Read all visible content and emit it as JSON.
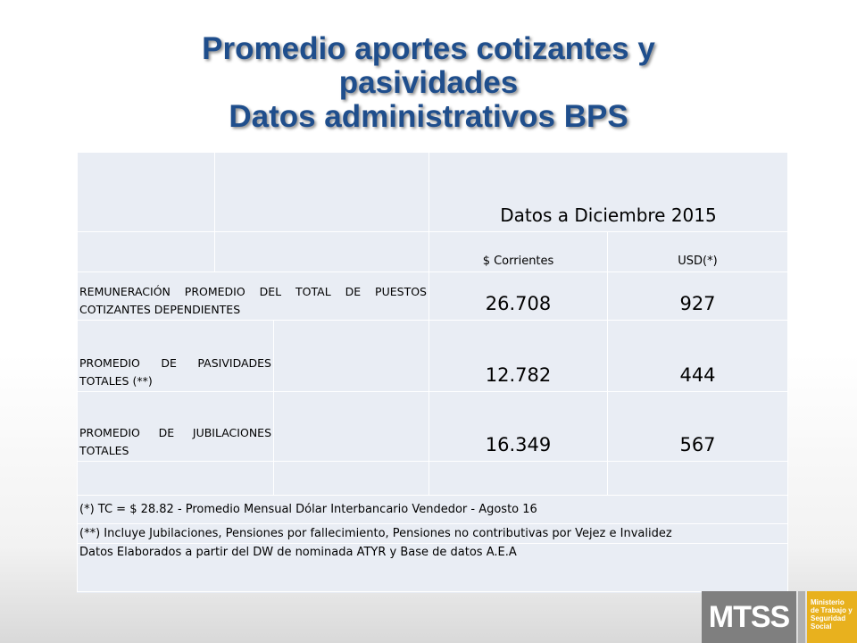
{
  "title": {
    "line1": "Promedio aportes cotizantes y",
    "line2": "pasividades",
    "line3": "Datos administrativos BPS"
  },
  "table": {
    "period_header": "Datos a Diciembre 2015",
    "col_corrientes": "$ Corrientes",
    "col_usd": "USD(*)",
    "rows": [
      {
        "label": "REMUNERACIÓN PROMEDIO DEL TOTAL DE PUESTOS COTIZANTES DEPENDIENTES",
        "corrientes": "26.708",
        "usd": "927"
      },
      {
        "label": "PROMEDIO DE PASIVIDADES TOTALES (**)",
        "corrientes": "12.782",
        "usd": "444"
      },
      {
        "label": "PROMEDIO DE JUBILACIONES TOTALES",
        "corrientes": "16.349",
        "usd": "567"
      }
    ],
    "notes": [
      "(*) TC = $ 28.82 - Promedio Mensual Dólar Interbancario Vendedor - Agosto 16",
      "(**) Incluye Jubilaciones, Pensiones por fallecimiento, Pensiones no contributivas por  Vejez e Invalidez",
      "Datos Elaborados a partir del DW de nominada ATYR y Base de datos A.E.A"
    ]
  },
  "logo": {
    "acronym": "MTSS",
    "line1": "Ministerio",
    "line2": "de Trabajo y",
    "line3": "Seguridad",
    "line4": "Social"
  },
  "colors": {
    "title": "#1f4e8c",
    "table_bg": "#e9edf4",
    "logo_gray": "#7f7f7f",
    "logo_gold": "#e8b11e"
  }
}
